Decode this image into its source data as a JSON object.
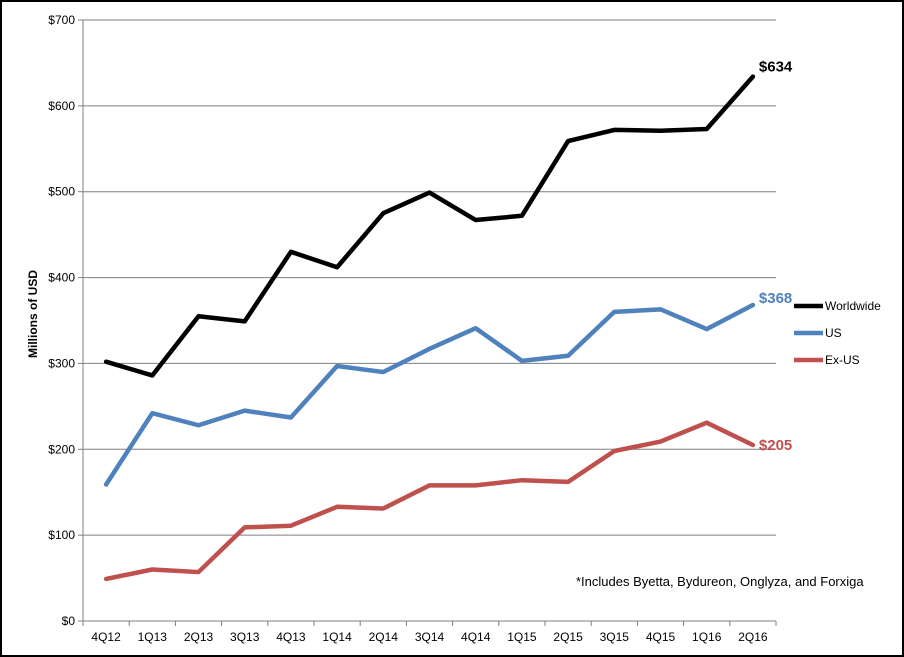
{
  "chart_data": {
    "type": "line",
    "ylabel": "Millions of USD",
    "ylim": [
      0,
      700
    ],
    "y_ticks": [
      "$0",
      "$100",
      "$200",
      "$300",
      "$400",
      "$500",
      "$600",
      "$700"
    ],
    "y_tick_values": [
      0,
      100,
      200,
      300,
      400,
      500,
      600,
      700
    ],
    "categories": [
      "4Q12",
      "1Q13",
      "2Q13",
      "3Q13",
      "4Q13",
      "1Q14",
      "2Q14",
      "3Q14",
      "4Q14",
      "1Q15",
      "2Q15",
      "3Q15",
      "4Q15",
      "1Q16",
      "2Q16"
    ],
    "grid": "horizontal",
    "legend_position": "right",
    "series": [
      {
        "name": "Worldwide",
        "color": "#000000",
        "end_label": "$634",
        "values": [
          302,
          286,
          355,
          349,
          430,
          412,
          475,
          499,
          467,
          472,
          559,
          572,
          571,
          573,
          634
        ]
      },
      {
        "name": "US",
        "color": "#4f81bd",
        "end_label": "$368",
        "values": [
          159,
          242,
          228,
          245,
          237,
          297,
          290,
          317,
          341,
          303,
          309,
          360,
          363,
          340,
          368
        ]
      },
      {
        "name": "Ex-US",
        "color": "#c0504d",
        "end_label": "$205",
        "values": [
          49,
          60,
          57,
          109,
          111,
          133,
          131,
          158,
          158,
          164,
          162,
          198,
          209,
          231,
          205
        ]
      }
    ],
    "annotation": "*Includes Byetta, Bydureon, Onglyza, and Forxiga"
  }
}
